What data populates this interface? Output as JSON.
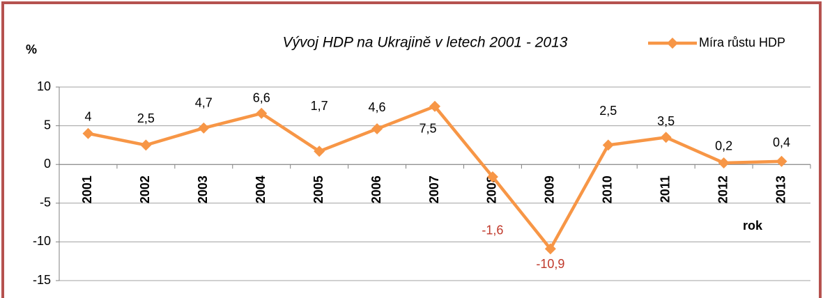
{
  "chart_data": {
    "type": "line",
    "title": "Vývoj HDP na Ukrajině v letech 2001 - 2013",
    "y_label": "%",
    "x_label": "rok",
    "categories": [
      "2001",
      "2002",
      "2003",
      "2004",
      "2005",
      "2006",
      "2007",
      "2008",
      "2009",
      "2010",
      "2011",
      "2012",
      "2013"
    ],
    "series": [
      {
        "name": "Míra růstu HDP",
        "color": "#f79646",
        "values": [
          4,
          2.5,
          4.7,
          6.6,
          1.7,
          4.6,
          7.5,
          -1.6,
          -10.9,
          2.5,
          3.5,
          0.2,
          0.4
        ],
        "value_labels": [
          "4",
          "2,5",
          "4,7",
          "6,6",
          "1,7",
          "4,6",
          "7,5",
          "-1,6",
          "-10,9",
          "2,5",
          "3,5",
          "0,2",
          "0,4"
        ]
      }
    ],
    "ylim": [
      -15,
      10
    ],
    "yticks": [
      -15,
      -10,
      -5,
      0,
      5,
      10
    ],
    "grid": true,
    "legend": "top-right"
  }
}
